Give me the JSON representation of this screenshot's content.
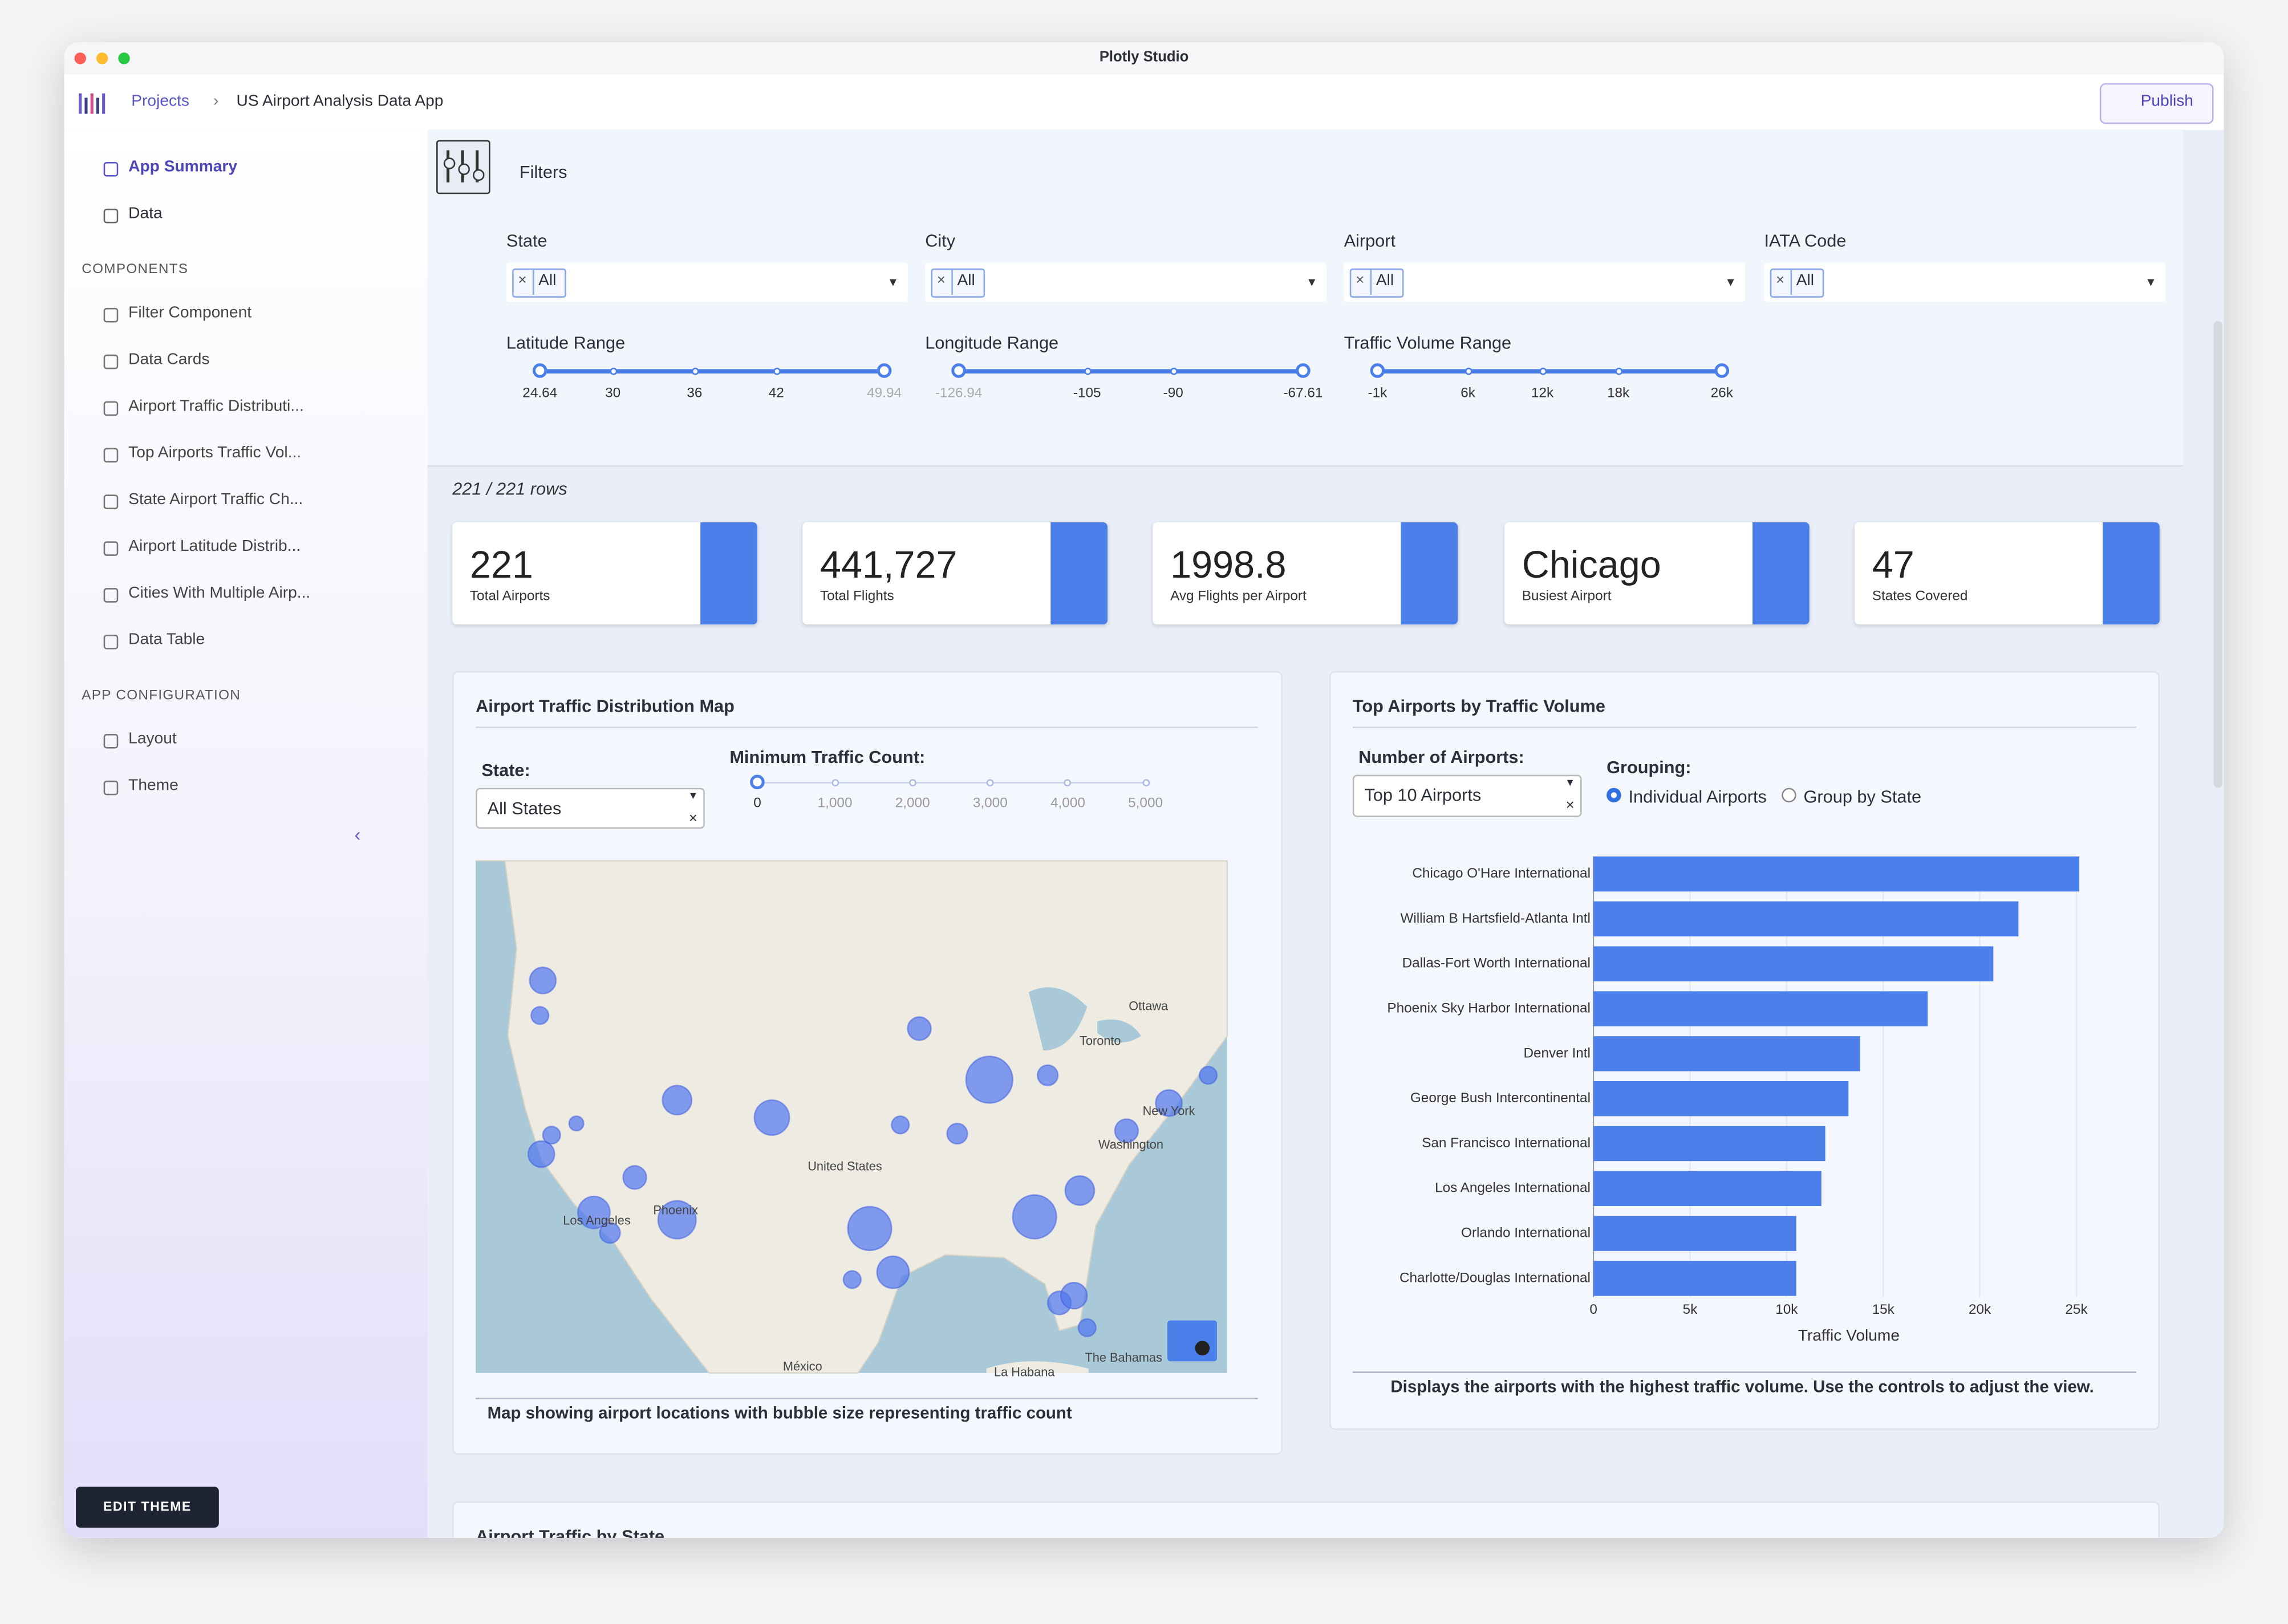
{
  "window": {
    "title": "Plotly Studio"
  },
  "header": {
    "breadcrumb": [
      "Projects",
      "US Airport Analysis Data App"
    ],
    "publish": "Publish"
  },
  "sidebar": {
    "top": [
      "App Summary",
      "Data"
    ],
    "components_heading": "COMPONENTS",
    "components": [
      "Filter Component",
      "Data Cards",
      "Airport Traffic Distributi...",
      "Top Airports Traffic Vol...",
      "State Airport Traffic Ch...",
      "Airport Latitude Distrib...",
      "Cities With Multiple Airp...",
      "Data Table"
    ],
    "config_heading": "APP CONFIGURATION",
    "config": [
      "Layout",
      "Theme"
    ],
    "edit_theme": "EDIT THEME"
  },
  "filters": {
    "title": "Filters",
    "dropdowns": [
      {
        "label": "State",
        "value": "All"
      },
      {
        "label": "City",
        "value": "All"
      },
      {
        "label": "Airport",
        "value": "All"
      },
      {
        "label": "IATA Code",
        "value": "All"
      }
    ],
    "sliders": [
      {
        "label": "Latitude Range",
        "ticks": [
          "24.64",
          "30",
          "36",
          "42",
          "49.94"
        ]
      },
      {
        "label": "Longitude Range",
        "ticks": [
          "-126.94",
          "-105",
          "-90",
          "-67.61"
        ]
      },
      {
        "label": "Traffic Volume Range",
        "ticks": [
          "-1k",
          "6k",
          "12k",
          "18k",
          "26k"
        ]
      }
    ]
  },
  "row_count": "221 / 221 rows",
  "cards": [
    {
      "value": "221",
      "label": "Total Airports"
    },
    {
      "value": "441,727",
      "label": "Total Flights"
    },
    {
      "value": "1998.8",
      "label": "Avg Flights per Airport"
    },
    {
      "value": "Chicago",
      "label": "Busiest Airport"
    },
    {
      "value": "47",
      "label": "States Covered"
    }
  ],
  "map_panel": {
    "title": "Airport Traffic Distribution Map",
    "state_label": "State:",
    "state_value": "All States",
    "min_label": "Minimum Traffic Count:",
    "min_ticks": [
      "0",
      "1,000",
      "2,000",
      "3,000",
      "4,000",
      "5,000"
    ],
    "places": [
      "Ottawa",
      "Toronto",
      "New York",
      "Washington",
      "United States",
      "Los Angeles",
      "Phoenix",
      "México",
      "La Habana",
      "The Bahamas"
    ],
    "caption": "Map showing airport locations with bubble size representing traffic count"
  },
  "bar_panel": {
    "title": "Top Airports by Traffic Volume",
    "number_label": "Number of Airports:",
    "number_value": "Top 10 Airports",
    "grouping_label": "Grouping:",
    "grouping_options": [
      "Individual Airports",
      "Group by State"
    ],
    "caption": "Displays the airports with the highest traffic volume. Use the controls to adjust the view.",
    "chart_data": {
      "type": "bar",
      "orientation": "horizontal",
      "categories": [
        "Chicago O'Hare International",
        "William B Hartsfield-Atlanta Intl",
        "Dallas-Fort Worth International",
        "Phoenix Sky Harbor International",
        "Denver Intl",
        "George Bush Intercontinental",
        "San Francisco International",
        "Los Angeles International",
        "Orlando International",
        "Charlotte/Douglas International"
      ],
      "values": [
        25150,
        22000,
        20700,
        17300,
        13800,
        13200,
        12000,
        11800,
        10500,
        10500
      ],
      "color": "#4b7fe9",
      "xlabel": "Traffic Volume",
      "xlim": [
        0,
        26400
      ],
      "xticks": [
        0,
        {
          "value": 5000,
          "label": "5k"
        },
        {
          "value": 10000,
          "label": "10k"
        },
        {
          "value": 15000,
          "label": "15k"
        },
        {
          "value": 20000,
          "label": "20k"
        },
        {
          "value": 25000,
          "label": "25k"
        }
      ],
      "grid": true
    }
  },
  "next_panel": {
    "title": "Airport Traffic by State"
  }
}
